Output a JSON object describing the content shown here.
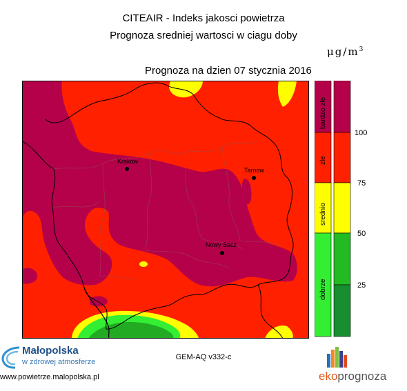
{
  "header": {
    "title_line1": "CITEAIR - Indeks jakosci powietrza",
    "title_line2": "Prognoza sredniej wartosci w ciagu doby",
    "unit_base": "μg/m",
    "unit_exp": "3",
    "forecast_date": "Prognoza na dzien  07 stycznia 2016"
  },
  "map": {
    "cities": [
      {
        "name": "Krakow"
      },
      {
        "name": "Tarnow"
      },
      {
        "name": "Nowy Sacz"
      }
    ],
    "colors": {
      "bardzo_zle": "#b5004a",
      "zle": "#ff2000",
      "srednio": "#ffff00",
      "dobrze_light": "#33ee33",
      "dobrze_dark": "#22aa22"
    }
  },
  "legend": {
    "categories": [
      {
        "label": "bardzo zle",
        "color": "#b5004a"
      },
      {
        "label": "zle",
        "color": "#ff2000"
      },
      {
        "label": "srednio",
        "color": "#ffff00"
      },
      {
        "label": "dobrze",
        "color": "#33ee33"
      }
    ],
    "ticks": [
      "100",
      "75",
      "50",
      "25"
    ],
    "scale_colors": [
      "#b5004a",
      "#ff2000",
      "#ffff00",
      "#22bb22",
      "#178f2e"
    ]
  },
  "footer": {
    "model": "GEM-AQ v332-c",
    "malopolska_name": "Małopolska",
    "malopolska_tag": "w zdrowej atmosferze",
    "url": "www.powietrze.malopolska.pl",
    "eko_part1": "eko",
    "eko_part2": "prognoza"
  }
}
